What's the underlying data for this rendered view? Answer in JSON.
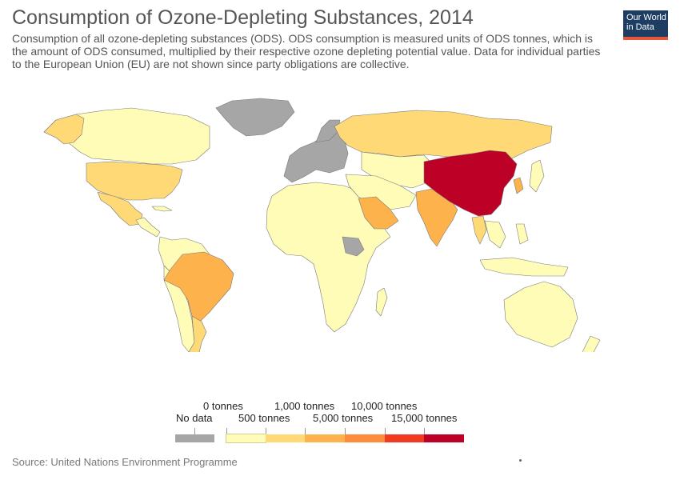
{
  "header": {
    "title": "Consumption of Ozone-Depleting Substances, 2014",
    "subtitle": "Consumption of all ozone-depleting substances (ODS). ODS consumption is measured units of ODS tonnes, which is the amount of ODS consumed, multiplied by their respective ozone depleting potential value. Data for individual parties to the European Union (EU) are not shown since party obligations are collective.",
    "logo_line1": "Our World",
    "logo_line2": "in Data"
  },
  "legend": {
    "no_data_label": "No data",
    "no_data_color": "#a6a6a6",
    "labels": [
      "0 tonnes",
      "500 tonnes",
      "1,000 tonnes",
      "5,000 tonnes",
      "10,000 tonnes",
      "15,000 tonnes"
    ],
    "colors": [
      "#fffcb7",
      "#fed976",
      "#feb24c",
      "#fd8d3c",
      "#f03b20",
      "#bd0026"
    ]
  },
  "colors": {
    "ocean": "#ffffff",
    "border": "#7a7a7a",
    "no_data": "#a6a6a6",
    "bin_0_500": "#fffcb7",
    "bin_500_1000": "#fed976",
    "bin_1000_5000": "#feb24c",
    "bin_15000_plus": "#bd0026"
  },
  "regions": {
    "china": "bin_15000_plus",
    "brazil": "bin_1000_5000",
    "india": "bin_1000_5000",
    "saudi_arabia": "bin_1000_5000",
    "south_korea": "bin_1000_5000",
    "russia": "bin_500_1000",
    "usa": "bin_500_1000",
    "mexico": "bin_500_1000",
    "argentina": "bin_500_1000",
    "thailand": "bin_500_1000",
    "canada": "bin_0_500",
    "africa": "bin_0_500",
    "south_america_other": "bin_0_500",
    "australia": "bin_0_500",
    "central_asia_middle_east": "bin_0_500",
    "southeast_asia": "bin_0_500",
    "greenland": "no_data",
    "europe_eu": "no_data",
    "sudan": "no_data"
  },
  "footer": {
    "source": "Source: United Nations Environment Programme"
  }
}
